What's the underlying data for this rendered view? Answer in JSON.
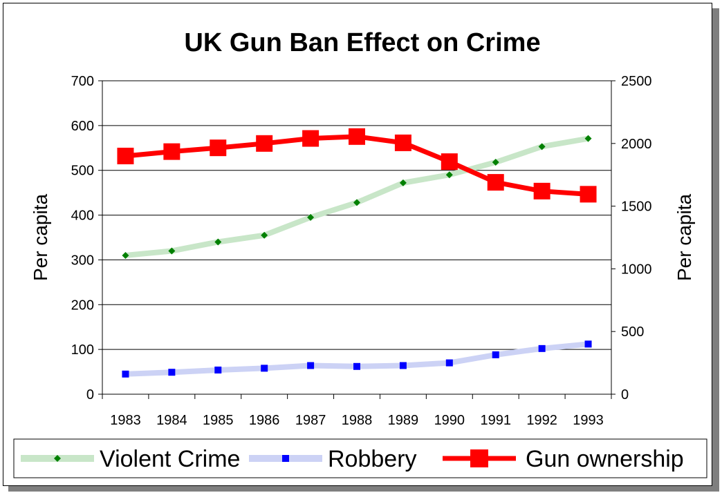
{
  "chart_data": {
    "type": "line",
    "title": "UK Gun Ban Effect on Crime",
    "ylabel": "Per capita",
    "y2label": "Per capita",
    "categories": [
      "1983",
      "1984",
      "1985",
      "1986",
      "1987",
      "1988",
      "1989",
      "1990",
      "1991",
      "1992",
      "1993"
    ],
    "ylim": [
      0,
      700
    ],
    "y_ticks": [
      0,
      100,
      200,
      300,
      400,
      500,
      600,
      700
    ],
    "y2lim": [
      0,
      2500
    ],
    "y2_ticks": [
      0,
      500,
      1000,
      1500,
      2000,
      2500
    ],
    "grid": true,
    "legend_position": "bottom",
    "series": [
      {
        "name": "Violent Crime",
        "axis": "left",
        "color": "#008000",
        "line_color": "#c8e6c8",
        "marker": "diamond",
        "values": [
          310,
          320,
          340,
          355,
          395,
          428,
          472,
          490,
          518,
          553,
          571
        ]
      },
      {
        "name": "Robbery",
        "axis": "left",
        "color": "#0000ff",
        "line_color": "#ccd2f5",
        "marker": "square",
        "values": [
          45,
          49,
          54,
          58,
          64,
          62,
          64,
          70,
          88,
          102,
          112
        ]
      },
      {
        "name": "Gun ownership",
        "axis": "right",
        "color": "#ff0000",
        "line_color": "#ff0000",
        "marker": "square",
        "values": [
          1900,
          1935,
          1965,
          2000,
          2040,
          2055,
          2005,
          1855,
          1690,
          1620,
          1595
        ]
      }
    ]
  }
}
